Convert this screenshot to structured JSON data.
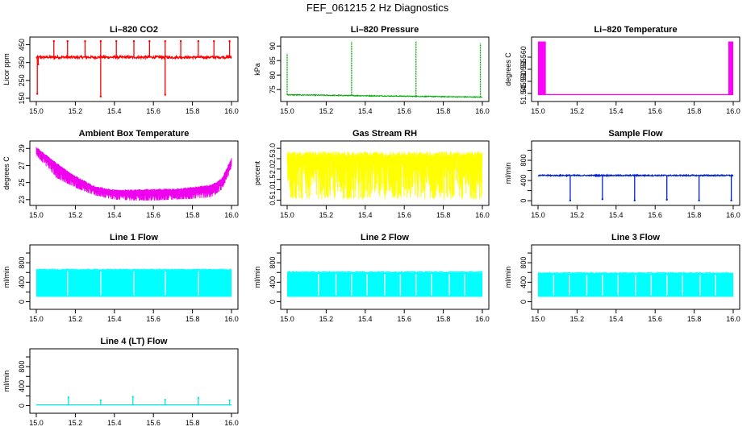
{
  "page": {
    "title": "FEF_061215  2 Hz Diagnostics"
  },
  "chart_data": [
    {
      "type": "line",
      "title": "Li–820 CO2",
      "xlabel": "",
      "ylabel": "Licor ppm",
      "xlim": [
        15.0,
        16.0
      ],
      "ylim": [
        150,
        475
      ],
      "xticks": [
        "15.0",
        "15.2",
        "15.4",
        "15.6",
        "15.8",
        "16.0"
      ],
      "yticks": [
        150,
        250,
        350,
        450
      ],
      "yticklabels": [
        "150",
        "250",
        "350",
        "450"
      ],
      "color": "#ff0000",
      "baseline": 380,
      "noise": 7,
      "spikes": [
        {
          "x": 15.005,
          "y": 175
        },
        {
          "x": 15.01,
          "y": 340
        },
        {
          "x": 15.09,
          "y": 470
        },
        {
          "x": 15.16,
          "y": 470
        },
        {
          "x": 15.25,
          "y": 470
        },
        {
          "x": 15.33,
          "y": 160
        },
        {
          "x": 15.33,
          "y": 470
        },
        {
          "x": 15.41,
          "y": 470
        },
        {
          "x": 15.5,
          "y": 470
        },
        {
          "x": 15.58,
          "y": 470
        },
        {
          "x": 15.66,
          "y": 170
        },
        {
          "x": 15.66,
          "y": 470
        },
        {
          "x": 15.74,
          "y": 470
        },
        {
          "x": 15.83,
          "y": 470
        },
        {
          "x": 15.91,
          "y": 470
        },
        {
          "x": 15.99,
          "y": 470
        }
      ]
    },
    {
      "type": "line",
      "title": "Li–820 Pressure",
      "xlabel": "",
      "ylabel": "kPa",
      "xlim": [
        15.0,
        16.0
      ],
      "ylim": [
        72,
        92
      ],
      "xticks": [
        "15.0",
        "15.2",
        "15.4",
        "15.6",
        "15.8",
        "16.0"
      ],
      "yticks": [
        75,
        80,
        85,
        90
      ],
      "yticklabels": [
        "75",
        "80",
        "85",
        "90"
      ],
      "color": "#00aa00",
      "baseline_start": 73.2,
      "baseline_end": 72.4,
      "noise": 0.3,
      "spikes": [
        {
          "x": 15.0,
          "y": 87.5
        },
        {
          "x": 15.33,
          "y": 91.5
        },
        {
          "x": 15.66,
          "y": 91.5
        },
        {
          "x": 15.99,
          "y": 91
        }
      ]
    },
    {
      "type": "line",
      "title": "Li–820 Temperature",
      "xlabel": "",
      "ylabel": "degrees C",
      "xlim": [
        15.0,
        16.0
      ],
      "ylim": [
        51.543,
        51.567
      ],
      "xticks": [
        "15.0",
        "15.2",
        "15.4",
        "15.6",
        "15.8",
        "16.0"
      ],
      "yticks": [
        51.545,
        51.55,
        51.555,
        51.56
      ],
      "yticklabels": [
        "51.545",
        "51.550",
        "51.555",
        "51.560"
      ],
      "color": "#ff00ff",
      "baseline": 51.5445,
      "blocks": [
        [
          15.0,
          15.04
        ],
        [
          15.975,
          16.0
        ]
      ],
      "block_top": 51.5665
    },
    {
      "type": "line",
      "title": "Ambient Box Temperature",
      "xlabel": "",
      "ylabel": "degrees C",
      "xlim": [
        15.0,
        16.0
      ],
      "ylim": [
        22.7,
        29.5
      ],
      "xticks": [
        "15.0",
        "15.2",
        "15.4",
        "15.6",
        "15.8",
        "16.0"
      ],
      "yticks": [
        23,
        25,
        27,
        29
      ],
      "yticklabels": [
        "23",
        "25",
        "27",
        "29"
      ],
      "color": "#ee00ee",
      "upper_envelope": [
        [
          15.0,
          29.2
        ],
        [
          15.1,
          27.4
        ],
        [
          15.2,
          25.8
        ],
        [
          15.3,
          24.6
        ],
        [
          15.4,
          24.2
        ],
        [
          15.5,
          24.2
        ],
        [
          15.6,
          24.3
        ],
        [
          15.7,
          24.3
        ],
        [
          15.8,
          24.5
        ],
        [
          15.9,
          24.8
        ],
        [
          15.95,
          25.5
        ],
        [
          16.0,
          27.9
        ]
      ],
      "lower_envelope": [
        [
          15.0,
          28.2
        ],
        [
          15.1,
          25.6
        ],
        [
          15.2,
          24.4
        ],
        [
          15.3,
          23.5
        ],
        [
          15.4,
          23.0
        ],
        [
          15.5,
          22.9
        ],
        [
          15.6,
          22.9
        ],
        [
          15.7,
          23.0
        ],
        [
          15.8,
          23.1
        ],
        [
          15.9,
          23.3
        ],
        [
          15.95,
          24.2
        ],
        [
          16.0,
          26.5
        ]
      ]
    },
    {
      "type": "line",
      "title": "Gas Stream RH",
      "xlabel": "",
      "ylabel": "percent",
      "xlim": [
        15.0,
        16.0
      ],
      "ylim": [
        0.4,
        3.2
      ],
      "xticks": [
        "15.0",
        "15.2",
        "15.4",
        "15.6",
        "15.8",
        "16.0"
      ],
      "yticks": [
        0.5,
        1.0,
        1.5,
        2.0,
        2.5,
        3.0
      ],
      "yticklabels": [
        "0.5",
        "1.0",
        "1.5",
        "2.0",
        "2.5",
        "3.0"
      ],
      "color": "#ffff00",
      "band_top": 2.85,
      "band_bottom": 0.55
    },
    {
      "type": "line",
      "title": "Sample Flow",
      "xlabel": "",
      "ylabel": "ml/min",
      "xlim": [
        15.0,
        16.0
      ],
      "ylim": [
        -30,
        1120
      ],
      "xticks": [
        "15.0",
        "15.2",
        "15.4",
        "15.6",
        "15.8",
        "16.0"
      ],
      "yticks": [
        0,
        200,
        400,
        600,
        800,
        1000
      ],
      "yticklabels": [
        "0",
        "",
        "400",
        "",
        "800",
        ""
      ],
      "color": "#0022cc",
      "baseline": 500,
      "noise": 12,
      "dips": [
        {
          "x": 15.165,
          "y": 5
        },
        {
          "x": 15.33,
          "y": 30
        },
        {
          "x": 15.495,
          "y": 5
        },
        {
          "x": 15.66,
          "y": 20
        },
        {
          "x": 15.825,
          "y": 5
        },
        {
          "x": 15.99,
          "y": 5
        }
      ]
    },
    {
      "type": "line",
      "title": "Line 1 Flow",
      "xlabel": "",
      "ylabel": "ml/min",
      "xlim": [
        15.0,
        16.0
      ],
      "ylim": [
        -90,
        1100
      ],
      "xticks": [
        "15.0",
        "15.2",
        "15.4",
        "15.6",
        "15.8",
        "16.0"
      ],
      "yticks": [
        0,
        200,
        400,
        600,
        800,
        1000
      ],
      "yticklabels": [
        "0",
        "",
        "400",
        "",
        "800",
        ""
      ],
      "color": "#00ffff",
      "band_top": 650,
      "band_bottom": 100,
      "gaps": [
        15.16,
        15.33,
        15.5,
        15.66,
        15.83
      ]
    },
    {
      "type": "line",
      "title": "Line 2 Flow",
      "xlabel": "",
      "ylabel": "ml/min",
      "xlim": [
        15.0,
        16.0
      ],
      "ylim": [
        -90,
        1100
      ],
      "xticks": [
        "15.0",
        "15.2",
        "15.4",
        "15.6",
        "15.8",
        "16.0"
      ],
      "yticks": [
        0,
        200,
        400,
        600,
        800,
        1000
      ],
      "yticklabels": [
        "0",
        "",
        "400",
        "",
        "800",
        ""
      ],
      "color": "#00ffff",
      "band_top": 600,
      "band_bottom": 100,
      "gaps": [
        15.16,
        15.25,
        15.33,
        15.41,
        15.5,
        15.58,
        15.66,
        15.74,
        15.83,
        15.91
      ]
    },
    {
      "type": "line",
      "title": "Line 3 Flow",
      "xlabel": "",
      "ylabel": "ml/min",
      "xlim": [
        15.0,
        16.0
      ],
      "ylim": [
        -90,
        1100
      ],
      "xticks": [
        "15.0",
        "15.2",
        "15.4",
        "15.6",
        "15.8",
        "16.0"
      ],
      "yticks": [
        0,
        200,
        400,
        600,
        800,
        1000
      ],
      "yticklabels": [
        "0",
        "",
        "400",
        "",
        "800",
        ""
      ],
      "color": "#00ffff",
      "band_top": 580,
      "band_bottom": 100,
      "gaps": [
        15.08,
        15.16,
        15.25,
        15.33,
        15.41,
        15.5,
        15.58,
        15.66,
        15.74,
        15.83,
        15.91
      ]
    },
    {
      "type": "line",
      "title": "Line 4 (LT) Flow",
      "xlabel": "",
      "ylabel": "ml/min",
      "xlim": [
        15.0,
        16.0
      ],
      "ylim": [
        -90,
        1100
      ],
      "xticks": [
        "15.0",
        "15.2",
        "15.4",
        "15.6",
        "15.8",
        "16.0"
      ],
      "yticks": [
        0,
        200,
        400,
        600,
        800,
        1000
      ],
      "yticklabels": [
        "0",
        "",
        "400",
        "",
        "800",
        ""
      ],
      "color": "#00e6e6",
      "baseline": 15,
      "spikes": [
        {
          "x": 15.165,
          "y": 170
        },
        {
          "x": 15.33,
          "y": 110
        },
        {
          "x": 15.495,
          "y": 180
        },
        {
          "x": 15.66,
          "y": 120
        },
        {
          "x": 15.83,
          "y": 160
        },
        {
          "x": 15.99,
          "y": 110
        }
      ]
    }
  ]
}
